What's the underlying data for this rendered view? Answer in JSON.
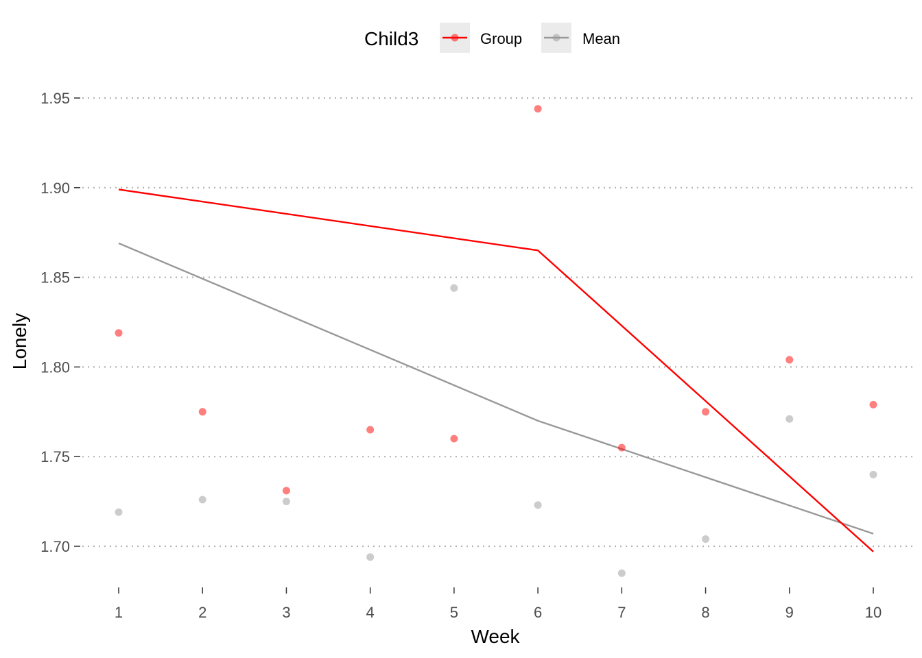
{
  "chart_data": {
    "type": "line",
    "xlabel": "Week",
    "ylabel": "Lonely",
    "x": [
      1,
      2,
      3,
      4,
      5,
      6,
      7,
      8,
      9,
      10
    ],
    "xticks": [
      "1",
      "2",
      "3",
      "4",
      "5",
      "6",
      "7",
      "8",
      "9",
      "10"
    ],
    "ylim": [
      1.68,
      1.96
    ],
    "yticks": [
      1.7,
      1.75,
      1.8,
      1.85,
      1.9,
      1.95
    ],
    "ytick_labels": [
      "1.70",
      "1.75",
      "1.80",
      "1.85",
      "1.90",
      "1.95"
    ],
    "grid": "horizontal dotted",
    "legend": {
      "title": "Child3",
      "position": "top",
      "entries": [
        "Group",
        "Mean"
      ]
    },
    "series": [
      {
        "name": "Group",
        "color": "#ff0000",
        "points": [
          1.819,
          1.775,
          1.731,
          1.765,
          1.76,
          1.944,
          1.755,
          1.775,
          1.804,
          1.779
        ],
        "line_x": [
          1,
          6,
          10
        ],
        "line_y": [
          1.899,
          1.865,
          1.697
        ]
      },
      {
        "name": "Mean",
        "color": "#999999",
        "points": [
          1.719,
          1.726,
          1.725,
          1.694,
          1.844,
          1.723,
          1.685,
          1.704,
          1.771,
          1.74
        ],
        "line_x": [
          1,
          6,
          10
        ],
        "line_y": [
          1.869,
          1.77,
          1.707
        ]
      }
    ]
  }
}
